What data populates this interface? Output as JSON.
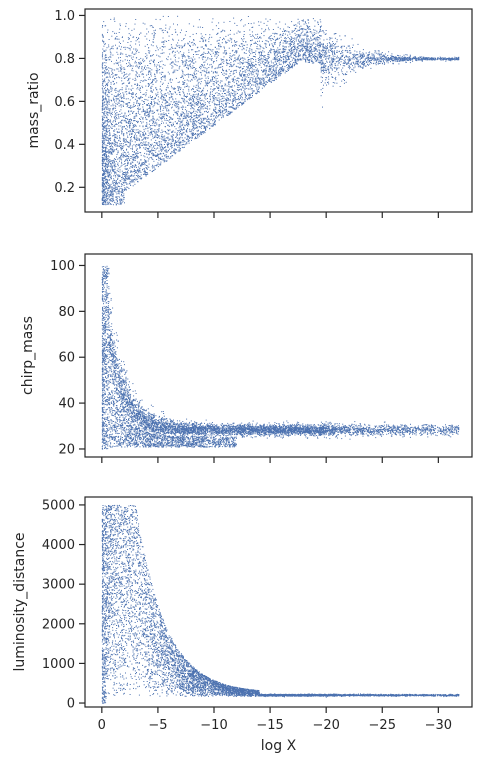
{
  "chart_data": [
    {
      "type": "scatter",
      "ylabel": "mass_ratio",
      "xlabel": "",
      "xlim": [
        1.5,
        -33.0
      ],
      "ylim": [
        0.085,
        1.03
      ],
      "xticks": [
        0,
        -5,
        -10,
        -15,
        -20,
        -25,
        -30
      ],
      "yticks": [
        0.2,
        0.4,
        0.6,
        0.8,
        1.0
      ],
      "ytick_labels": [
        "0.2",
        "0.4",
        "0.6",
        "0.8",
        "1.0"
      ],
      "show_xtick_labels": false,
      "color": "#4c72b0",
      "grid": false
    },
    {
      "type": "scatter",
      "ylabel": "chirp_mass",
      "xlabel": "",
      "xlim": [
        1.5,
        -33.0
      ],
      "ylim": [
        16.5,
        105
      ],
      "xticks": [
        0,
        -5,
        -10,
        -15,
        -20,
        -25,
        -30
      ],
      "yticks": [
        20,
        40,
        60,
        80,
        100
      ],
      "ytick_labels": [
        "20",
        "40",
        "60",
        "80",
        "100"
      ],
      "show_xtick_labels": false,
      "color": "#4c72b0",
      "grid": false
    },
    {
      "type": "scatter",
      "ylabel": "luminosity_distance",
      "xlabel": "log X",
      "xlim": [
        1.5,
        -33.0
      ],
      "ylim": [
        -100,
        5200
      ],
      "xticks": [
        0,
        -5,
        -10,
        -15,
        -20,
        -25,
        -30
      ],
      "xtick_labels": [
        "0",
        "−5",
        "−10",
        "−15",
        "−20",
        "−25",
        "−30"
      ],
      "yticks": [
        0,
        1000,
        2000,
        3000,
        4000,
        5000
      ],
      "ytick_labels": [
        "0",
        "1000",
        "2000",
        "3000",
        "4000",
        "5000"
      ],
      "show_xtick_labels": true,
      "color": "#4c72b0",
      "grid": false
    }
  ]
}
